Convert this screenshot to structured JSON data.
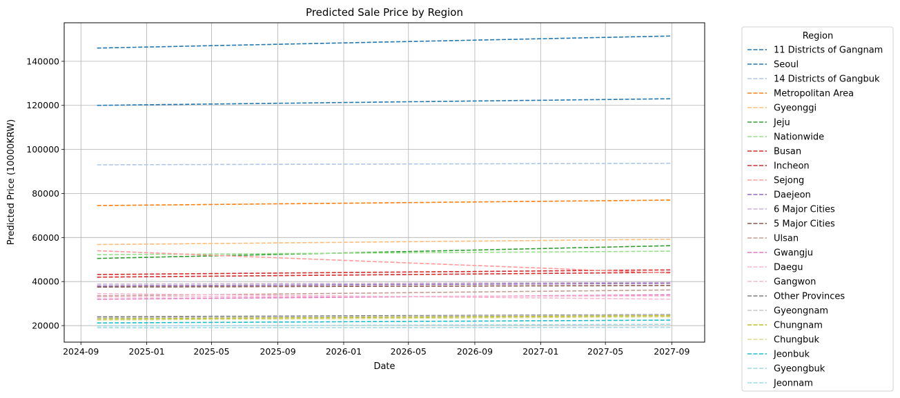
{
  "chart_data": {
    "type": "line",
    "title": "Predicted Sale Price by Region",
    "xlabel": "Date",
    "ylabel": "Predicted Price (10000KRW)",
    "xlim": [
      "2024-08-01",
      "2027-11-01"
    ],
    "ylim": [
      12500,
      157500
    ],
    "x_ticks": [
      "2024-09",
      "2025-01",
      "2025-05",
      "2025-09",
      "2026-01",
      "2026-05",
      "2026-09",
      "2027-01",
      "2027-05",
      "2027-09"
    ],
    "y_ticks": [
      20000,
      40000,
      60000,
      80000,
      100000,
      120000,
      140000
    ],
    "grid": true,
    "line_style": "dashed",
    "legend": {
      "title": "Region",
      "placement": "outside-right"
    },
    "x": [
      "2024-10",
      "2024-11",
      "2024-12",
      "2025-01",
      "2025-02",
      "2025-03",
      "2025-04",
      "2025-05",
      "2025-06",
      "2025-07",
      "2025-08",
      "2025-09",
      "2025-10",
      "2025-11",
      "2025-12",
      "2026-01",
      "2026-02",
      "2026-03",
      "2026-04",
      "2026-05",
      "2026-06",
      "2026-07",
      "2026-08",
      "2026-09",
      "2026-10",
      "2026-11",
      "2026-12",
      "2027-01",
      "2027-02",
      "2027-03",
      "2027-04",
      "2027-05",
      "2027-06",
      "2027-07",
      "2027-08",
      "2027-09"
    ],
    "series": [
      {
        "name": "11 Districts of Gangnam",
        "color": "#1f77b4",
        "start": 146000,
        "end": 151500
      },
      {
        "name": "Seoul",
        "color": "#1f77b4",
        "start": 120000,
        "end": 123000
      },
      {
        "name": "14 Districts of Gangbuk",
        "color": "#aec7e8",
        "start": 93000,
        "end": 93700
      },
      {
        "name": "Metropolitan Area",
        "color": "#ff7f0e",
        "start": 74500,
        "end": 77000
      },
      {
        "name": "Gyeonggi",
        "color": "#ffbb78",
        "start": 56800,
        "end": 59200
      },
      {
        "name": "Jeju",
        "color": "#2ca02c",
        "start": 50500,
        "end": 56300
      },
      {
        "name": "Nationwide",
        "color": "#98df8a",
        "start": 52200,
        "end": 53800
      },
      {
        "name": "Busan",
        "color": "#d62728",
        "start": 43200,
        "end": 45300
      },
      {
        "name": "Incheon",
        "color": "#d62728",
        "start": 42000,
        "end": 44200
      },
      {
        "name": "Sejong",
        "color": "#ff9896",
        "start": 54000,
        "end": 43800
      },
      {
        "name": "Daejeon",
        "color": "#9467bd",
        "start": 38000,
        "end": 39200
      },
      {
        "name": "6 Major Cities",
        "color": "#c5b0d5",
        "start": 38800,
        "end": 39600
      },
      {
        "name": "5 Major Cities",
        "color": "#8c564b",
        "start": 37500,
        "end": 38200
      },
      {
        "name": "Ulsan",
        "color": "#c49c94",
        "start": 33500,
        "end": 36200
      },
      {
        "name": "Gwangju",
        "color": "#e377c2",
        "start": 32000,
        "end": 34000
      },
      {
        "name": "Daegu",
        "color": "#f7b6d2",
        "start": 34500,
        "end": 32000
      },
      {
        "name": "Gangwon",
        "color": "#f7b6d2",
        "start": 33000,
        "end": 33500
      },
      {
        "name": "Other Provinces",
        "color": "#7f7f7f",
        "start": 24000,
        "end": 25000
      },
      {
        "name": "Gyeongnam",
        "color": "#c7c7c7",
        "start": 23500,
        "end": 24800
      },
      {
        "name": "Chungnam",
        "color": "#bcbd22",
        "start": 23000,
        "end": 24500
      },
      {
        "name": "Chungbuk",
        "color": "#dbdb8d",
        "start": 22500,
        "end": 24000
      },
      {
        "name": "Jeonbuk",
        "color": "#17becf",
        "start": 21200,
        "end": 22500
      },
      {
        "name": "Gyeongbuk",
        "color": "#9edae5",
        "start": 19800,
        "end": 20600
      },
      {
        "name": "Jeonnam",
        "color": "#9edae5",
        "start": 19000,
        "end": 19200
      }
    ]
  }
}
